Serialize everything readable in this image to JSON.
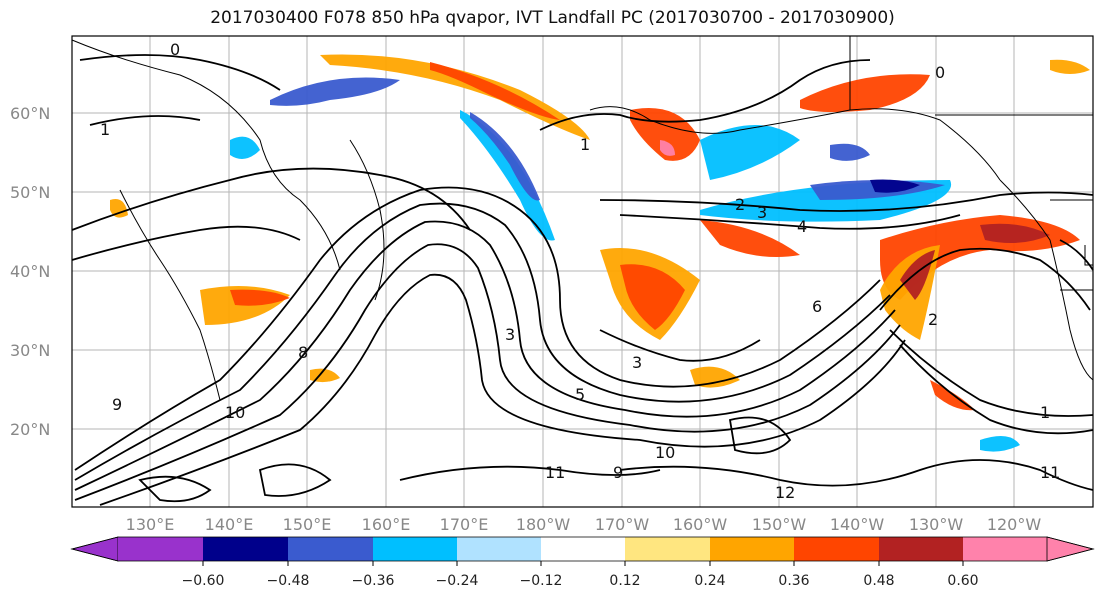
{
  "title": "2017030400 F078 850 hPa qvapor, IVT Landfall PC (2017030700 - 2017030900)",
  "lat_labels": [
    "60°N",
    "50°N",
    "40°N",
    "30°N",
    "20°N"
  ],
  "lon_labels": [
    "130°E",
    "140°E",
    "150°E",
    "160°E",
    "170°E",
    "180°W",
    "170°W",
    "160°W",
    "150°W",
    "140°W",
    "130°W",
    "120°W"
  ],
  "contour_labels": [
    "0",
    "1",
    "1",
    "2",
    "3",
    "4",
    "3",
    "3",
    "5",
    "6",
    "8",
    "9",
    "10",
    "11",
    "9",
    "10",
    "12",
    "11",
    "2",
    "0",
    "1"
  ],
  "colorbar": {
    "tick_labels": [
      "−0.60",
      "−0.48",
      "−0.36",
      "−0.24",
      "−0.12",
      "0.12",
      "0.24",
      "0.36",
      "0.48",
      "0.60"
    ],
    "colors": [
      "#9932cc",
      "#00008b",
      "#3a5bcf",
      "#00bfff",
      "#b0e2ff",
      "#ffffff",
      "#ffe680",
      "#ffa500",
      "#ff4500",
      "#b22222",
      "#ff82ab"
    ]
  }
}
